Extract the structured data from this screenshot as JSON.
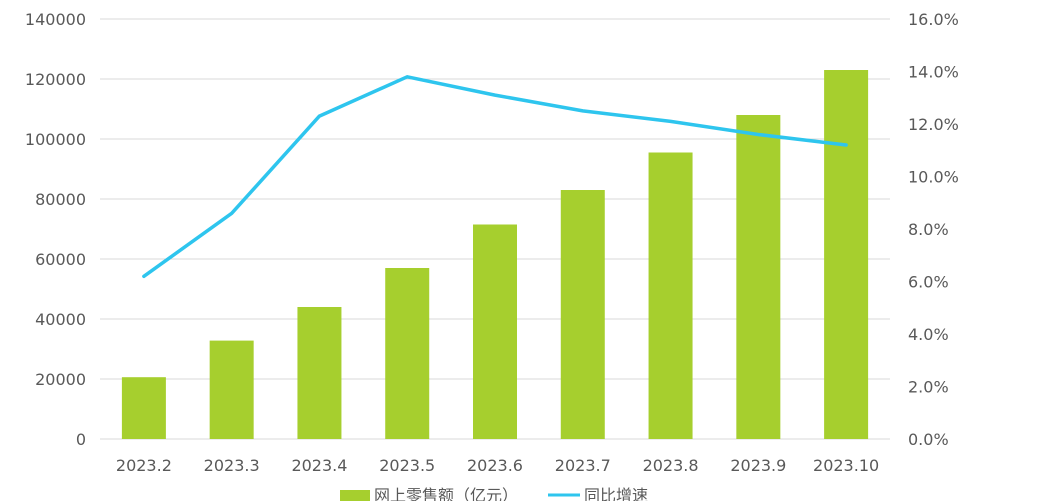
{
  "chart_data": {
    "type": "bar",
    "categories": [
      "2023.2",
      "2023.3",
      "2023.4",
      "2023.5",
      "2023.6",
      "2023.7",
      "2023.8",
      "2023.9",
      "2023.10"
    ],
    "series": [
      {
        "name": "网上零售额（亿元）",
        "type": "bar",
        "axis": "left",
        "color": "#a6cf2e",
        "values": [
          20600,
          32800,
          44000,
          57000,
          71500,
          83000,
          95500,
          108000,
          123000
        ]
      },
      {
        "name": "同比增速",
        "type": "line",
        "axis": "right",
        "color": "#2ec5ee",
        "values": [
          6.2,
          8.6,
          12.3,
          13.8,
          13.1,
          12.5,
          12.1,
          11.6,
          11.2
        ]
      }
    ],
    "left_axis": {
      "ylim": [
        0,
        140000
      ],
      "ticks": [
        0,
        20000,
        40000,
        60000,
        80000,
        100000,
        120000,
        140000
      ],
      "tick_labels": [
        "0",
        "20000",
        "40000",
        "60000",
        "80000",
        "100000",
        "120000",
        "140000"
      ]
    },
    "right_axis": {
      "ylim": [
        0,
        16
      ],
      "ticks": [
        0,
        2,
        4,
        6,
        8,
        10,
        12,
        14,
        16
      ],
      "tick_labels": [
        "0.0%",
        "2.0%",
        "4.0%",
        "6.0%",
        "8.0%",
        "10.0%",
        "12.0%",
        "14.0%",
        "16.0%"
      ]
    },
    "grid": true,
    "legend": "bottom"
  }
}
